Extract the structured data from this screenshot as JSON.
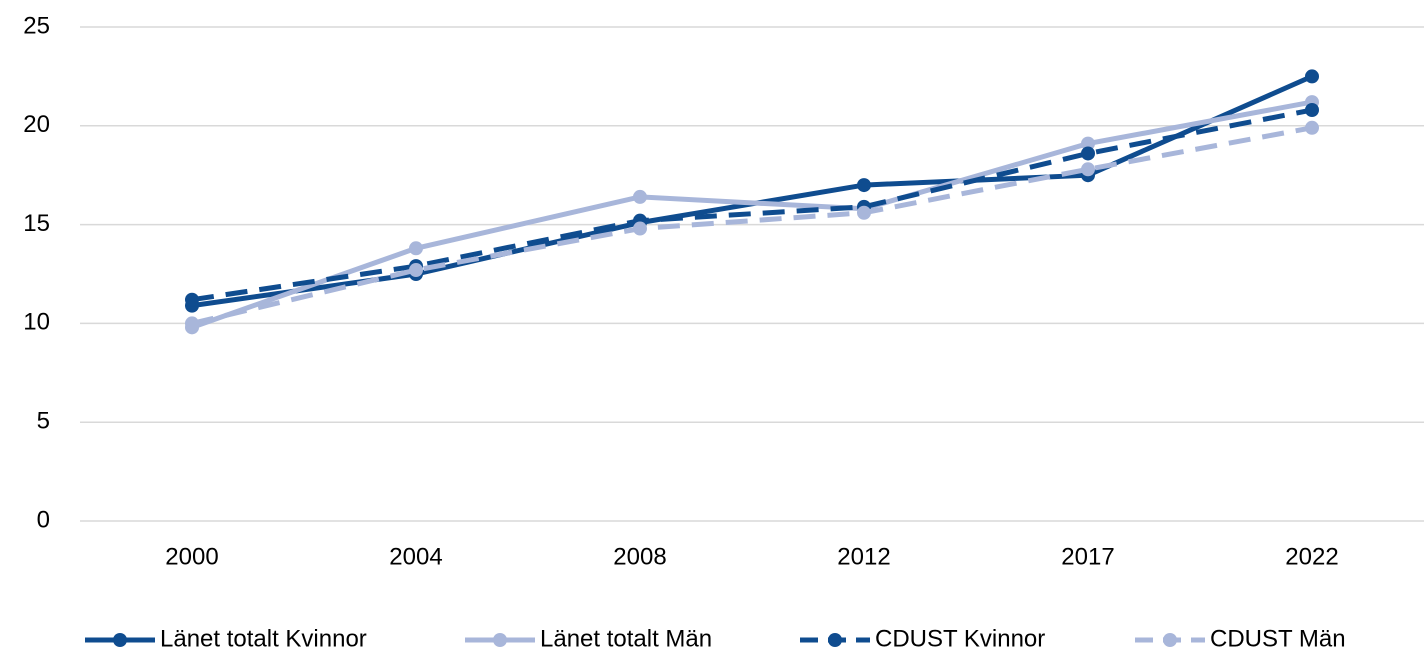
{
  "chart_data": {
    "type": "line",
    "categories": [
      "2000",
      "2004",
      "2008",
      "2012",
      "2017",
      "2022"
    ],
    "series": [
      {
        "name": "Länet totalt Kvinnor",
        "color": "#0f4c8f",
        "line_style": "solid",
        "values": [
          10.9,
          12.5,
          15.1,
          17.0,
          17.5,
          22.5
        ]
      },
      {
        "name": "Länet totalt Män",
        "color": "#a8b6da",
        "line_style": "solid",
        "values": [
          9.8,
          13.8,
          16.4,
          15.8,
          19.1,
          21.2
        ]
      },
      {
        "name": "CDUST Kvinnor",
        "color": "#0f4c8f",
        "line_style": "dashed",
        "values": [
          11.2,
          12.9,
          15.2,
          15.9,
          18.6,
          20.8
        ]
      },
      {
        "name": "CDUST Män",
        "color": "#a8b6da",
        "line_style": "dashed",
        "values": [
          10.0,
          12.7,
          14.8,
          15.6,
          17.8,
          19.9
        ]
      }
    ],
    "ylim": [
      0,
      25
    ],
    "yticks": [
      0,
      5,
      10,
      15,
      20,
      25
    ],
    "grid": true,
    "legend": "bottom"
  }
}
